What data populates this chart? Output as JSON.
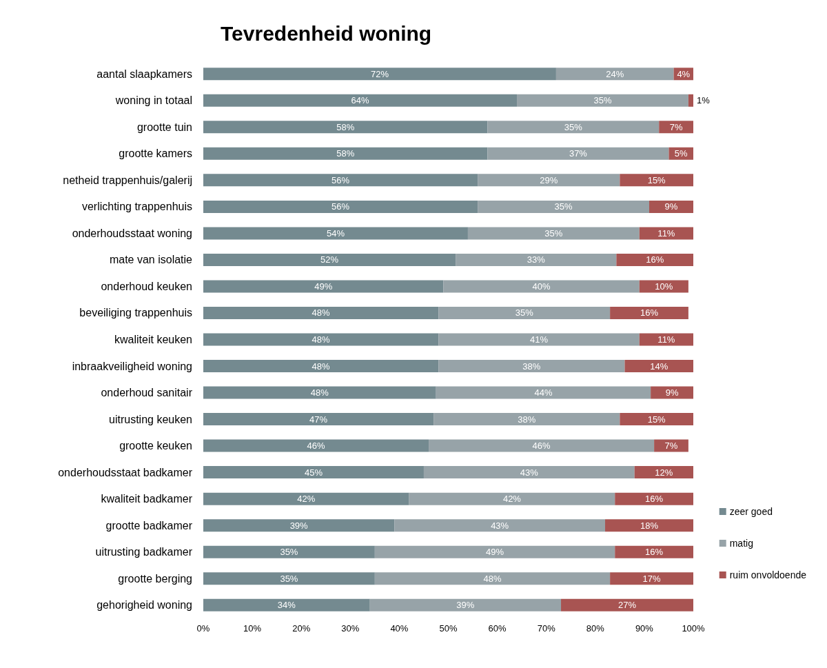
{
  "chart_data": {
    "type": "bar",
    "title": "Tevredenheid woning",
    "orientation": "horizontal",
    "stacked": true,
    "legend": "right",
    "grid": false,
    "categories": [
      "aantal slaapkamers",
      "woning in totaal",
      "grootte tuin",
      "grootte kamers",
      "netheid trappenhuis/galerij",
      "verlichting trappenhuis",
      "onderhoudsstaat woning",
      "mate van isolatie",
      "onderhoud keuken",
      "beveiliging trappenhuis",
      "kwaliteit keuken",
      "inbraakveiligheid woning",
      "onderhoud sanitair",
      "uitrusting keuken",
      "grootte keuken",
      "onderhoudsstaat badkamer",
      "kwaliteit badkamer",
      "grootte badkamer",
      "uitrusting badkamer",
      "grootte berging",
      "gehorigheid woning"
    ],
    "xlim": [
      0,
      100
    ],
    "xticks": [
      {
        "value": 0,
        "label": "0%"
      },
      {
        "value": 10,
        "label": "10%"
      },
      {
        "value": 20,
        "label": "20%"
      },
      {
        "value": 30,
        "label": "30%"
      },
      {
        "value": 40,
        "label": "40%"
      },
      {
        "value": 50,
        "label": "50%"
      },
      {
        "value": 60,
        "label": "60%"
      },
      {
        "value": 70,
        "label": "70%"
      },
      {
        "value": 80,
        "label": "80%"
      },
      {
        "value": 90,
        "label": "90%"
      },
      {
        "value": 100,
        "label": "100%"
      }
    ],
    "series": [
      {
        "name": "zeer goed",
        "color": "#748a90",
        "values": [
          72,
          64,
          58,
          58,
          56,
          56,
          54,
          51.5,
          49,
          48,
          48,
          48,
          47.5,
          47,
          46,
          45,
          42,
          39,
          35,
          35,
          34
        ],
        "value_labels": [
          "72%",
          "64%",
          "58%",
          "58%",
          "56%",
          "56%",
          "54%",
          "52%",
          "49%",
          "48%",
          "48%",
          "48%",
          "48%",
          "47%",
          "46%",
          "45%",
          "42%",
          "39%",
          "35%",
          "35%",
          "34%"
        ]
      },
      {
        "name": "matig",
        "color": "#97a3a8",
        "values": [
          24,
          35,
          35,
          37,
          29,
          35,
          35,
          32.8,
          40,
          35,
          41,
          38,
          43.8,
          38,
          46,
          43,
          42,
          43,
          49,
          48,
          39
        ],
        "value_labels": [
          "24%",
          "35%",
          "35%",
          "37%",
          "29%",
          "35%",
          "35%",
          "33%",
          "40%",
          "35%",
          "41%",
          "38%",
          "44%",
          "38%",
          "46%",
          "43%",
          "42%",
          "43%",
          "49%",
          "48%",
          "39%"
        ]
      },
      {
        "name": "ruim onvoldoende",
        "color": "#a85452",
        "values": [
          4,
          1,
          7,
          5,
          15,
          9,
          11,
          15.7,
          10,
          16,
          11,
          14,
          8.7,
          15,
          7,
          12,
          16,
          18,
          16,
          17,
          27
        ],
        "value_labels": [
          "4%",
          "1%",
          "7%",
          "5%",
          "15%",
          "9%",
          "11%",
          "16%",
          "10%",
          "16%",
          "11%",
          "14%",
          "9%",
          "15%",
          "7%",
          "12%",
          "16%",
          "18%",
          "16%",
          "17%",
          "27%"
        ]
      }
    ]
  }
}
